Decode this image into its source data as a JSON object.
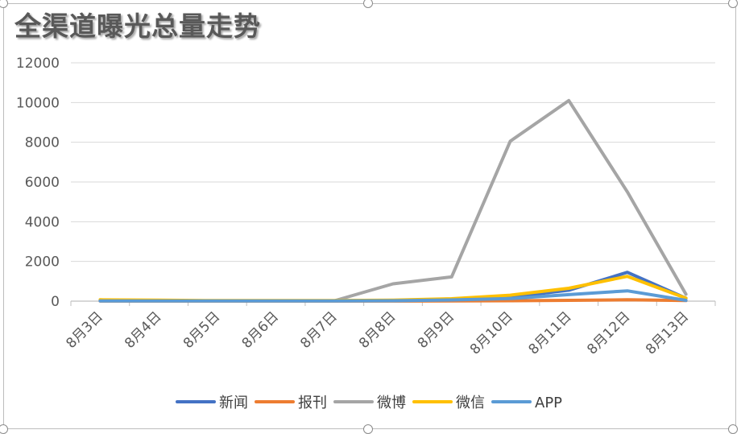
{
  "chart_data": {
    "type": "line",
    "title": "全渠道曝光总量走势",
    "xlabel": "",
    "ylabel": "",
    "categories": [
      "8月3日",
      "8月4日",
      "8月5日",
      "8月6日",
      "8月7日",
      "8月8日",
      "8月9日",
      "8月10日",
      "8月11日",
      "8月12日",
      "8月13日"
    ],
    "ylim": [
      0,
      12000
    ],
    "yticks": [
      0,
      2000,
      4000,
      6000,
      8000,
      10000,
      12000
    ],
    "grid": true,
    "legend_position": "bottom",
    "series": [
      {
        "name": "新闻",
        "color": "#4472c4",
        "values": [
          30,
          20,
          20,
          20,
          20,
          30,
          80,
          200,
          550,
          1450,
          150
        ]
      },
      {
        "name": "报刊",
        "color": "#ed7d31",
        "values": [
          5,
          5,
          5,
          5,
          5,
          5,
          10,
          20,
          40,
          70,
          30
        ]
      },
      {
        "name": "微博",
        "color": "#a5a5a5",
        "values": [
          20,
          20,
          20,
          20,
          20,
          870,
          1220,
          8050,
          10100,
          5500,
          350
        ]
      },
      {
        "name": "微信",
        "color": "#ffc000",
        "values": [
          70,
          50,
          30,
          30,
          30,
          50,
          120,
          300,
          650,
          1250,
          150
        ]
      },
      {
        "name": "APP",
        "color": "#5b9bd5",
        "values": [
          10,
          10,
          10,
          10,
          10,
          20,
          60,
          130,
          330,
          520,
          40
        ]
      }
    ]
  }
}
